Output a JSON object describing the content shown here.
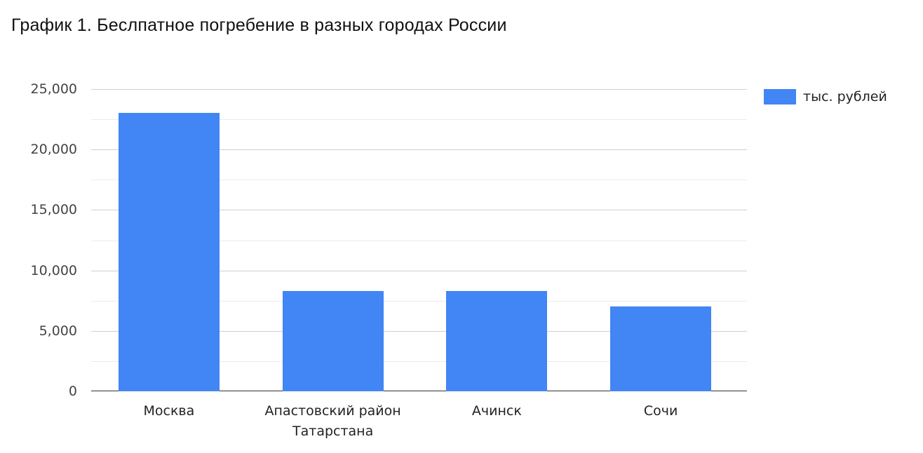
{
  "chart_data": {
    "type": "bar",
    "title": "График 1. Беслпатное погребение в разных городах России",
    "categories": [
      "Москва",
      "Апастовский район Татарстана",
      "Ачинск",
      "Сочи"
    ],
    "category_lines": [
      [
        "Москва"
      ],
      [
        "Апастовский район",
        "Татарстана"
      ],
      [
        "Ачинск"
      ],
      [
        "Сочи"
      ]
    ],
    "series": [
      {
        "name": "тыс. рублей",
        "values": [
          23000,
          8300,
          8300,
          7000
        ],
        "color": "#4285f4"
      }
    ],
    "xlabel": "",
    "ylabel": "",
    "ylim": [
      0,
      25000
    ],
    "yticks": [
      "0",
      "5,000",
      "10,000",
      "15,000",
      "20,000",
      "25,000"
    ],
    "grid": true,
    "legend_position": "right"
  }
}
